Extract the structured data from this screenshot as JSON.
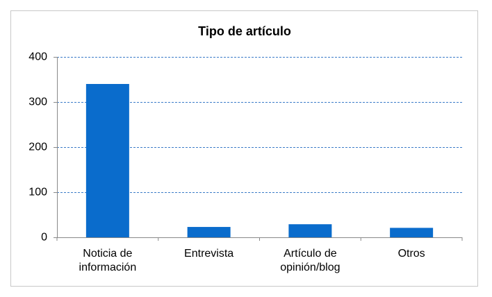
{
  "chart_data": {
    "type": "bar",
    "title": "Tipo de artículo",
    "categories": [
      "Noticia de información",
      "Entrevista",
      "Artículo de opinión/blog",
      "Otros"
    ],
    "values": [
      340,
      23,
      29,
      21
    ],
    "color": "#0a6ccc",
    "ylim": [
      0,
      400
    ],
    "yticks": [
      0,
      100,
      200,
      300,
      400
    ],
    "grid": true
  }
}
